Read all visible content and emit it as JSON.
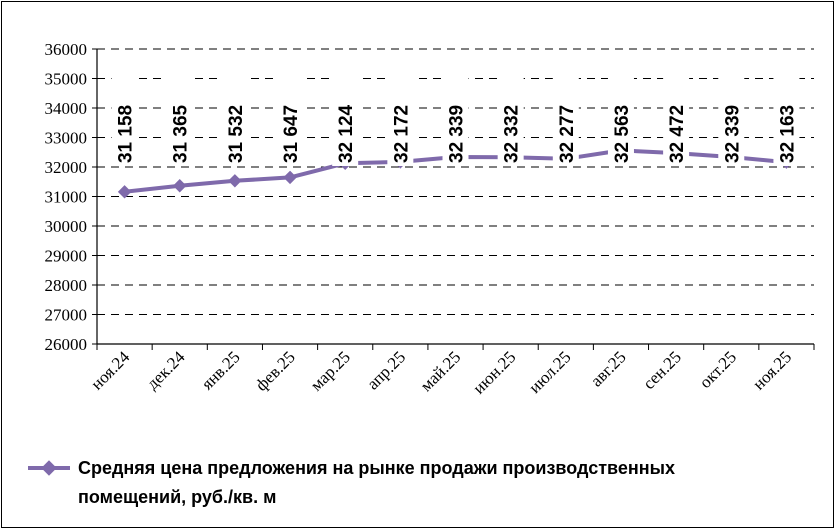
{
  "chart_data": {
    "type": "line",
    "categories": [
      "ноя.24",
      "дек.24",
      "янв.25",
      "фев.25",
      "мар.25",
      "апр.25",
      "май.25",
      "июн.25",
      "июл.25",
      "авг.25",
      "сен.25",
      "окт.25",
      "ноя.25"
    ],
    "series": [
      {
        "name": "Средняя цена предложения на рынке продажи  производственных помещений,  руб./кв. м",
        "values": [
          31158,
          31365,
          31532,
          31647,
          32124,
          32172,
          32339,
          32332,
          32277,
          32563,
          32472,
          32339,
          32163
        ],
        "labels": [
          "31 158",
          "31 365",
          "31 532",
          "31 647",
          "32 124",
          "32 172",
          "32 339",
          "32 332",
          "32 277",
          "32 563",
          "32 472",
          "32 339",
          "32 163"
        ]
      }
    ],
    "yticks": [
      "26000",
      "27000",
      "28000",
      "29000",
      "30000",
      "31000",
      "32000",
      "33000",
      "34000",
      "35000",
      "36000"
    ],
    "ylim": [
      26000,
      36000
    ],
    "grid": "horizontal-dashed",
    "legend_position": "bottom",
    "colors": {
      "line": "#7f6aab",
      "marker": "#7f6aab",
      "grid": "#000000"
    }
  }
}
